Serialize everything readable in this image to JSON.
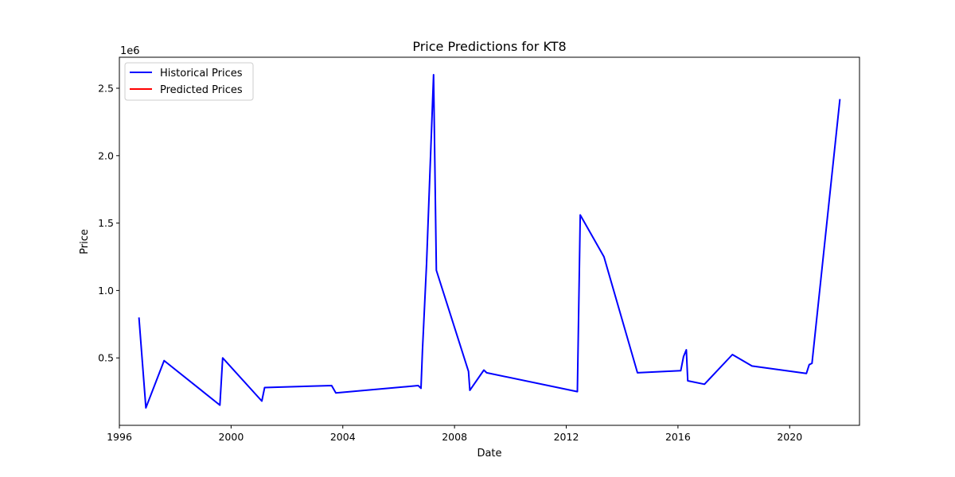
{
  "chart_data": {
    "type": "line",
    "title": "Price Predictions for KT8",
    "xlabel": "Date",
    "ylabel": "Price",
    "y_offset_label": "1e6",
    "xlim": [
      1996.0,
      2022.5
    ],
    "ylim": [
      0.0,
      2.73
    ],
    "x_ticks": [
      {
        "value": 1996,
        "label": "1996"
      },
      {
        "value": 2000,
        "label": "2000"
      },
      {
        "value": 2004,
        "label": "2004"
      },
      {
        "value": 2008,
        "label": "2008"
      },
      {
        "value": 2012,
        "label": "2012"
      },
      {
        "value": 2016,
        "label": "2016"
      },
      {
        "value": 2020,
        "label": "2020"
      }
    ],
    "y_ticks": [
      {
        "value": 0.5,
        "label": "0.5"
      },
      {
        "value": 1.0,
        "label": "1.0"
      },
      {
        "value": 1.5,
        "label": "1.5"
      },
      {
        "value": 2.0,
        "label": "2.0"
      },
      {
        "value": 2.5,
        "label": "2.5"
      }
    ],
    "legend_position": "top-left",
    "grid": false,
    "series": [
      {
        "name": "Historical Prices",
        "color": "#0000ff",
        "points": [
          [
            1996.7,
            0.8
          ],
          [
            1996.95,
            0.13
          ],
          [
            1997.6,
            0.48
          ],
          [
            1999.6,
            0.15
          ],
          [
            1999.7,
            0.5
          ],
          [
            2001.1,
            0.18
          ],
          [
            2001.2,
            0.28
          ],
          [
            2003.6,
            0.295
          ],
          [
            2003.75,
            0.24
          ],
          [
            2006.7,
            0.295
          ],
          [
            2006.8,
            0.275
          ],
          [
            2006.85,
            0.55
          ],
          [
            2007.0,
            1.2
          ],
          [
            2007.25,
            2.6
          ],
          [
            2007.35,
            1.15
          ],
          [
            2008.5,
            0.4
          ],
          [
            2008.55,
            0.26
          ],
          [
            2009.05,
            0.41
          ],
          [
            2009.15,
            0.39
          ],
          [
            2012.4,
            0.25
          ],
          [
            2012.5,
            1.56
          ],
          [
            2013.35,
            1.25
          ],
          [
            2014.55,
            0.39
          ],
          [
            2016.1,
            0.405
          ],
          [
            2016.2,
            0.51
          ],
          [
            2016.3,
            0.56
          ],
          [
            2016.35,
            0.33
          ],
          [
            2016.95,
            0.305
          ],
          [
            2017.95,
            0.525
          ],
          [
            2018.65,
            0.44
          ],
          [
            2020.6,
            0.385
          ],
          [
            2020.7,
            0.45
          ],
          [
            2020.8,
            0.46
          ],
          [
            2021.8,
            2.42
          ]
        ]
      },
      {
        "name": "Predicted Prices",
        "color": "#ff0000",
        "points": []
      }
    ]
  }
}
